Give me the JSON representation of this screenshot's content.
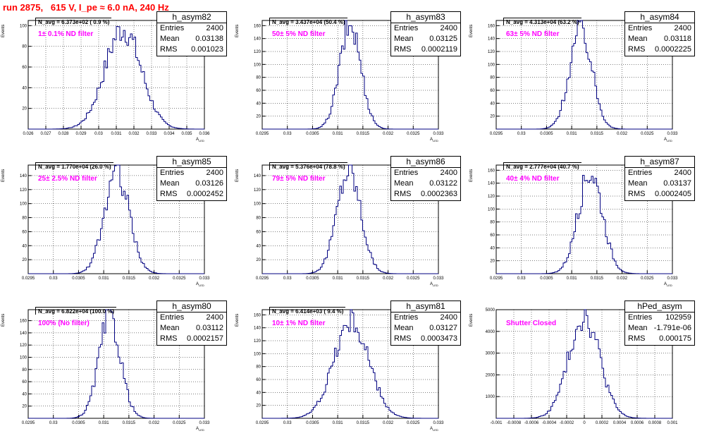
{
  "page": {
    "title": "run 2875,   615 V, I_pe ≈ 6.0 nA, 240 Hz"
  },
  "chart_data": [
    {
      "type": "bar",
      "name": "h_asym82",
      "nav_label": "N_avg = 6.373e+02 ( 0.9 %)",
      "filter_label": "1± 0.1% ND filter",
      "stats": {
        "entries": "2400",
        "mean": "0.03138",
        "rms": "0.001023"
      },
      "xlim": [
        0.026,
        0.036
      ],
      "ylim": [
        0,
        105
      ],
      "xticks": [
        "0.026",
        "0.027",
        "0.028",
        "0.029",
        "0.03",
        "0.031",
        "0.032",
        "0.033",
        "0.034",
        "0.035",
        "0.036"
      ],
      "yticks": [
        "20",
        "40",
        "60",
        "80",
        "100"
      ],
      "mean": 0.03138,
      "rms": 0.001023,
      "peak": 97,
      "xlabel": "A",
      "xlabel_sub": "LED",
      "ylabel": "Events"
    },
    {
      "type": "bar",
      "name": "h_asym83",
      "nav_label": "N_avg = 3.437e+04 (50.4 %)",
      "filter_label": "50± 5% ND filter",
      "stats": {
        "entries": "2400",
        "mean": "0.03125",
        "rms": "0.0002119"
      },
      "xlim": [
        0.0295,
        0.033
      ],
      "ylim": [
        0,
        168
      ],
      "xticks": [
        "0.0295",
        "0.03",
        "0.0305",
        "0.031",
        "0.0315",
        "0.032",
        "0.0325",
        "0.033"
      ],
      "yticks": [
        "20",
        "40",
        "60",
        "80",
        "100",
        "120",
        "140",
        "160"
      ],
      "mean": 0.03125,
      "rms": 0.0002119,
      "peak": 160,
      "xlabel": "A",
      "xlabel_sub": "LED",
      "ylabel": "Events"
    },
    {
      "type": "bar",
      "name": "h_asym84",
      "nav_label": "N_avg = 4.313e+04 (63.2 %)",
      "filter_label": "63± 5% ND filter",
      "stats": {
        "entries": "2400",
        "mean": "0.03118",
        "rms": "0.0002225"
      },
      "xlim": [
        0.0295,
        0.033
      ],
      "ylim": [
        0,
        168
      ],
      "xticks": [
        "0.0295",
        "0.03",
        "0.0305",
        "0.031",
        "0.0315",
        "0.032",
        "0.0325",
        "0.033"
      ],
      "yticks": [
        "20",
        "40",
        "60",
        "80",
        "100",
        "120",
        "140",
        "160"
      ],
      "mean": 0.03118,
      "rms": 0.0002225,
      "peak": 155,
      "xlabel": "A",
      "xlabel_sub": "LED",
      "ylabel": "Events"
    },
    {
      "type": "bar",
      "name": "h_asym85",
      "nav_label": "N_avg = 1.770e+04 (26.0 %)",
      "filter_label": "25± 2.5% ND filter",
      "stats": {
        "entries": "2400",
        "mean": "0.03126",
        "rms": "0.0002452"
      },
      "xlim": [
        0.0295,
        0.033
      ],
      "ylim": [
        0,
        155
      ],
      "xticks": [
        "0.0295",
        "0.03",
        "0.0305",
        "0.031",
        "0.0315",
        "0.032",
        "0.0325",
        "0.033"
      ],
      "yticks": [
        "20",
        "40",
        "60",
        "80",
        "100",
        "120",
        "140"
      ],
      "mean": 0.03126,
      "rms": 0.0002452,
      "peak": 145,
      "xlabel": "A",
      "xlabel_sub": "LED",
      "ylabel": "Events"
    },
    {
      "type": "bar",
      "name": "h_asym86",
      "nav_label": "N_avg = 5.376e+04 (78.8 %)",
      "filter_label": "79± 5% ND filter",
      "stats": {
        "entries": "2400",
        "mean": "0.03122",
        "rms": "0.0002363"
      },
      "xlim": [
        0.0295,
        0.033
      ],
      "ylim": [
        0,
        155
      ],
      "xticks": [
        "0.0295",
        "0.03",
        "0.0305",
        "0.031",
        "0.0315",
        "0.032",
        "0.0325",
        "0.033"
      ],
      "yticks": [
        "20",
        "40",
        "60",
        "80",
        "100",
        "120",
        "140"
      ],
      "mean": 0.03122,
      "rms": 0.0002363,
      "peak": 148,
      "xlabel": "A",
      "xlabel_sub": "LED",
      "ylabel": "Events"
    },
    {
      "type": "bar",
      "name": "h_asym87",
      "nav_label": "N_avg = 2.777e+04 (40.7 %)",
      "filter_label": "40± 4% ND filter",
      "stats": {
        "entries": "2400",
        "mean": "0.03137",
        "rms": "0.0002405"
      },
      "xlim": [
        0.0295,
        0.033
      ],
      "ylim": [
        0,
        168
      ],
      "xticks": [
        "0.0295",
        "0.03",
        "0.0305",
        "0.031",
        "0.0315",
        "0.032",
        "0.0325",
        "0.033"
      ],
      "yticks": [
        "20",
        "40",
        "60",
        "80",
        "100",
        "120",
        "140",
        "160"
      ],
      "mean": 0.03137,
      "rms": 0.0002405,
      "peak": 158,
      "xlabel": "A",
      "xlabel_sub": "LED",
      "ylabel": "Events"
    },
    {
      "type": "bar",
      "name": "h_asym80",
      "nav_label": "N_avg = 6.822e+04 (100.0 %)",
      "filter_label": "100% (No filter)",
      "stats": {
        "entries": "2400",
        "mean": "0.03112",
        "rms": "0.0002157"
      },
      "xlim": [
        0.0295,
        0.033
      ],
      "ylim": [
        0,
        178
      ],
      "xticks": [
        "0.0295",
        "0.03",
        "0.0305",
        "0.031",
        "0.0315",
        "0.032",
        "0.0325",
        "0.033"
      ],
      "yticks": [
        "20",
        "40",
        "60",
        "80",
        "100",
        "120",
        "140",
        "160"
      ],
      "mean": 0.03112,
      "rms": 0.0002157,
      "peak": 165,
      "xlabel": "A",
      "xlabel_sub": "LED",
      "ylabel": "Events"
    },
    {
      "type": "bar",
      "name": "h_asym81",
      "nav_label": "N_avg = 6.414e+03 ( 9.4 %)",
      "filter_label": "10± 1% ND filter",
      "stats": {
        "entries": "2400",
        "mean": "0.03127",
        "rms": "0.0003473"
      },
      "xlim": [
        0.0295,
        0.033
      ],
      "ylim": [
        0,
        168
      ],
      "xticks": [
        "0.0295",
        "0.03",
        "0.0305",
        "0.031",
        "0.0315",
        "0.032",
        "0.0325",
        "0.033"
      ],
      "yticks": [
        "20",
        "40",
        "60",
        "80",
        "100",
        "120",
        "140",
        "160"
      ],
      "mean": 0.03127,
      "rms": 0.0003473,
      "peak": 150,
      "xlabel": "A",
      "xlabel_sub": "LED",
      "ylabel": "Events"
    },
    {
      "type": "bar",
      "name": "hPed_asym",
      "nav_label": "",
      "filter_label": "Shutter Closed",
      "stats": {
        "entries": "102959",
        "mean": "-1.791e-06",
        "rms": "0.000175"
      },
      "xlim": [
        -0.001,
        0.001
      ],
      "ylim": [
        0,
        5000
      ],
      "xticks": [
        "-0.001",
        "-0.0008",
        "-0.0006",
        "-0.0004",
        "-0.0002",
        "0",
        "0.0002",
        "0.0004",
        "0.0006",
        "0.0008",
        "0.001"
      ],
      "yticks": [
        "1000",
        "2000",
        "3000",
        "4000",
        "5000"
      ],
      "mean": -1.791e-06,
      "rms": 0.000175,
      "peak": 4750,
      "xlabel": "",
      "xlabel_sub": "",
      "ylabel": "Events"
    }
  ],
  "labels": {
    "entries": "Entries",
    "mean": "Mean",
    "rms": "RMS"
  }
}
